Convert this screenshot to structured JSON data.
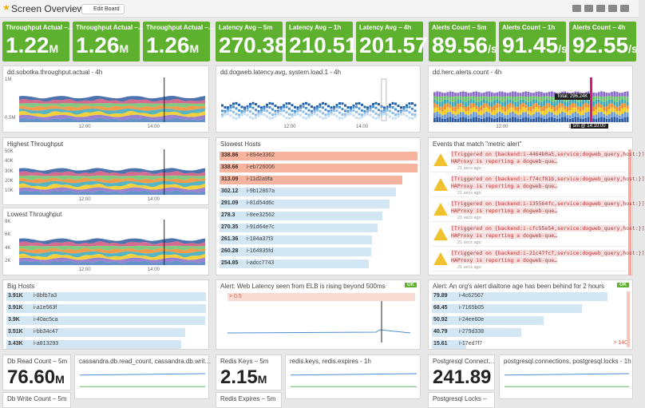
{
  "header": {
    "title": "Screen Overview",
    "edit_button": "Edit Board"
  },
  "tiles": [
    {
      "title": "Throughput Actual –...",
      "value": "1.22",
      "unit": "M"
    },
    {
      "title": "Throughput Actual –...",
      "value": "1.26",
      "unit": "M"
    },
    {
      "title": "Throughput Actual –...",
      "value": "1.26",
      "unit": "M"
    },
    {
      "title": "Latency Avg – 5m",
      "value": "270.38"
    },
    {
      "title": "Latency Avg – 1h",
      "value": "210.51"
    },
    {
      "title": "Latency Avg – 4h",
      "value": "201.57"
    },
    {
      "title": "Alerts Count – 5m",
      "value": "89.56",
      "unit": "/s"
    },
    {
      "title": "Alerts Count – 1h",
      "value": "91.45",
      "unit": "/s"
    },
    {
      "title": "Alerts Count – 4h",
      "value": "92.55",
      "unit": "/s"
    }
  ],
  "graphs": {
    "throughput": {
      "title": "dd.sobotka.throughput.actual - 4h",
      "yticks": [
        "1M",
        "0.5M"
      ],
      "xticks": [
        "12:00",
        "14:00"
      ]
    },
    "latency": {
      "title": "dd.dogweb.latency.avg, system.load.1 - 4h",
      "xticks": [
        "12:00",
        "14:00"
      ]
    },
    "alerts": {
      "title": "dd.herc.alerts.count - 4h",
      "tooltip": "Total: 296.24K",
      "marker": "5m @ 14:10:00",
      "xticks": [
        "12:00",
        "14:00"
      ]
    },
    "highest": {
      "title": "Highest Throughput",
      "yticks": [
        "50K",
        "40K",
        "30K",
        "20K",
        "10K"
      ],
      "xticks": [
        "12:00",
        "14:00"
      ]
    },
    "lowest": {
      "title": "Lowest Throughput",
      "yticks": [
        "8K",
        "6K",
        "4K",
        "2K"
      ],
      "xticks": [
        "12:00",
        "14:00"
      ]
    },
    "cassandra": {
      "title": "cassandra.db.read_count, cassandra.db.writ…"
    },
    "redis": {
      "title": "redis.keys, redis.expires - 1h"
    },
    "postgres": {
      "title": "postgresql.connections, postgresql.locks - 1h"
    }
  },
  "slowest": {
    "title": "Slowest Hosts",
    "rows": [
      {
        "value": 338.86,
        "host": "i-894e3362"
      },
      {
        "value": 338.66,
        "host": "i-eb726006"
      },
      {
        "value": 313.09,
        "host": "i-11d2a9fa"
      },
      {
        "value": 302.12,
        "host": "i-9b12867a"
      },
      {
        "value": 291.09,
        "host": "i-81d54d6c"
      },
      {
        "value": 278.3,
        "host": "i-8ee32562"
      },
      {
        "value": 270.35,
        "host": "i-91d64e7c"
      },
      {
        "value": 261.36,
        "host": "i-184a37f3"
      },
      {
        "value": 260.28,
        "host": "i-164835fd"
      },
      {
        "value": 254.85,
        "host": "i-adcc7743"
      }
    ]
  },
  "events": {
    "title": "Events that match \"metric alert\"",
    "items": [
      {
        "text": "[Triggered on {backend:i-4464b0a5,service:dogweb_query,host:}]",
        "summary": "HAProxy is reporting a dogweb-que…",
        "time": "21 secs ago"
      },
      {
        "text": "[Triggered on {backend:i-f74cf81b,service:dogweb_query,host:}]",
        "summary": "HAProxy is reporting a dogweb-que…",
        "time": "21 secs ago"
      },
      {
        "text": "[Triggered on {backend:i-135564fc,service:dogweb_query,host:}]",
        "summary": "HAProxy is reporting a dogweb-que…",
        "time": "21 secs ago"
      },
      {
        "text": "[Triggered on {backend:i-cfc55e54,service:dogweb_query,host:}]",
        "summary": "HAProxy is reporting a dogweb-que…",
        "time": "21 secs ago"
      },
      {
        "text": "[Triggered on {backend:i-21c47fcf,service:dogweb_query,host:}]",
        "summary": "HAProxy is reporting a dogweb-que…",
        "time": "21 secs ago"
      }
    ]
  },
  "big_hosts": {
    "title": "Big Hosts",
    "rows": [
      {
        "value": 3910,
        "label": "3.91K",
        "host": "i-8bfb7a3"
      },
      {
        "value": 3910,
        "label": "3.91K",
        "host": "i-a1e563f"
      },
      {
        "value": 3900,
        "label": "3.9K",
        "host": "i-40ac5ca"
      },
      {
        "value": 3510,
        "label": "3.51K",
        "host": "i-bb34c47"
      },
      {
        "value": 3430,
        "label": "3.43K",
        "host": "i-a813293"
      }
    ]
  },
  "alert_web": {
    "title": "Alert: Web Latency seen from ELB is rising beyond 500ms",
    "status": "OK",
    "threshold": "> 0.5"
  },
  "dialtone": {
    "title": "Alert: An org's alert dialtone age has been behind for 2 hours",
    "status": "OK",
    "threshold": "> 140",
    "rows": [
      {
        "value": 79.89,
        "host": "i-4c62567"
      },
      {
        "value": 68.45,
        "host": "i-7165b05"
      },
      {
        "value": 50.92,
        "host": "i-24ee60e"
      },
      {
        "value": 40.79,
        "host": "i-279d338"
      },
      {
        "value": 15.61,
        "host": "i-17ed7f7"
      }
    ]
  },
  "bottom_tiles": [
    {
      "title": "Db Read Count – 5m",
      "value": "76.60",
      "unit": "M"
    },
    {
      "title": "Db Write Count – 5m"
    },
    {
      "title": "Redis Keys – 5m",
      "value": "2.15",
      "unit": "M"
    },
    {
      "title": "Redis Expires – 5m"
    },
    {
      "title": "Postgresql Connect…",
      "value": "241.89"
    },
    {
      "title": "Postgresql Locks –"
    }
  ]
}
